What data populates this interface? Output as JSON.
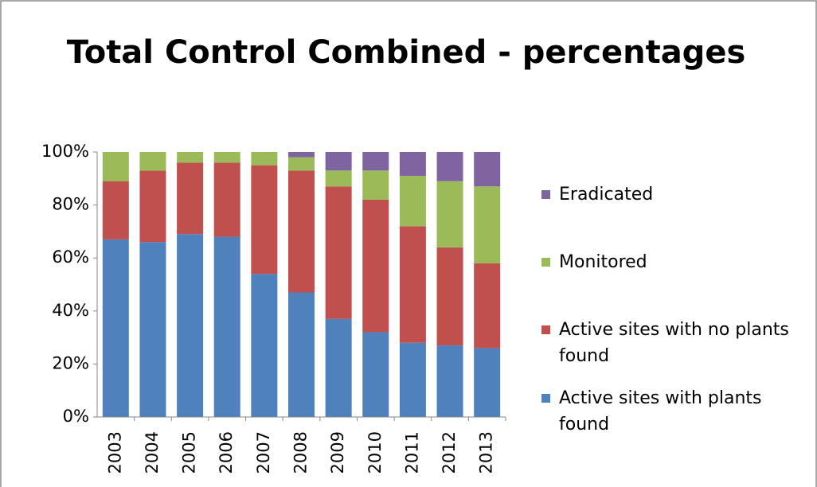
{
  "chart_data": {
    "type": "stacked_bar",
    "title": "Total Control Combined - percentages",
    "categories": [
      "2003",
      "2004",
      "2005",
      "2006",
      "2007",
      "2008",
      "2009",
      "2010",
      "2011",
      "2012",
      "2013"
    ],
    "series": [
      {
        "name": "Active sites with plants found",
        "color": "#4f81bd",
        "values": [
          67,
          66,
          69,
          68,
          54,
          47,
          37,
          32,
          28,
          27,
          26
        ]
      },
      {
        "name": "Active sites with no plants found",
        "color": "#c0504d",
        "values": [
          22,
          27,
          27,
          28,
          41,
          46,
          50,
          50,
          44,
          37,
          32
        ]
      },
      {
        "name": "Monitored",
        "color": "#9bbb59",
        "values": [
          11,
          7,
          4,
          4,
          5,
          5,
          6,
          11,
          19,
          25,
          29
        ]
      },
      {
        "name": "Eradicated",
        "color": "#8064a2",
        "values": [
          0,
          0,
          0,
          0,
          0,
          2,
          7,
          7,
          9,
          11,
          13
        ]
      }
    ],
    "ylim": [
      0,
      100
    ],
    "yticks": [
      {
        "value": 0,
        "label": "0%"
      },
      {
        "value": 20,
        "label": "20%"
      },
      {
        "value": 40,
        "label": "40%"
      },
      {
        "value": 60,
        "label": "60%"
      },
      {
        "value": 80,
        "label": "80%"
      },
      {
        "value": 100,
        "label": "100%"
      }
    ],
    "grid": false,
    "legend": "right"
  }
}
